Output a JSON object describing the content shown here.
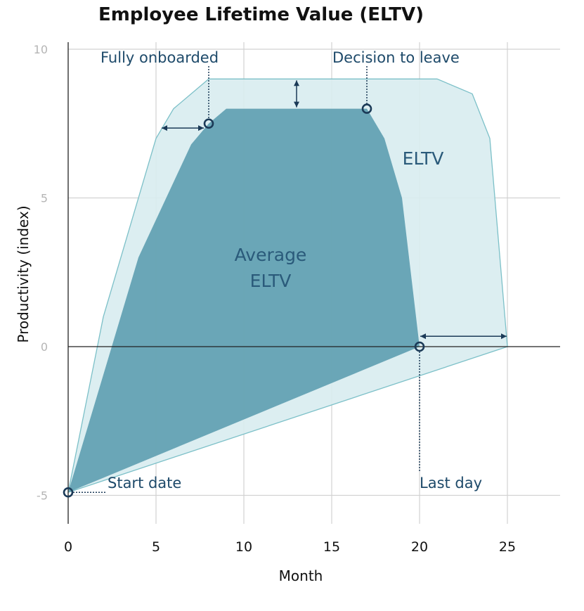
{
  "chart_data": {
    "type": "area",
    "title": "Employee Lifetime Value (ELTV)",
    "xlabel": "Month",
    "ylabel": "Productivity (index)",
    "xlim": [
      0,
      28
    ],
    "ylim": [
      -6,
      10.2
    ],
    "xticks": [
      0,
      5,
      10,
      15,
      20,
      25
    ],
    "yticks": [
      -5,
      0,
      5,
      10
    ],
    "grid": true,
    "colors": {
      "eltv_fill": "#d8ecef",
      "eltv_stroke": "#7cc0c8",
      "avg_fill": "#5a9cae",
      "marker": "#1b3a57",
      "annotation": "#1e4a6a"
    },
    "series": [
      {
        "name": "ELTV",
        "x": [
          0,
          2,
          5,
          6,
          8,
          17,
          21,
          23,
          24,
          25
        ],
        "y": [
          -4.9,
          1,
          7,
          8,
          9,
          9,
          9,
          8.5,
          7,
          0
        ]
      },
      {
        "name": "Average ELTV",
        "x": [
          0,
          4,
          7,
          8,
          9,
          17,
          18,
          19,
          20
        ],
        "y": [
          -4.9,
          3,
          6.8,
          7.5,
          8,
          8,
          7,
          5,
          0
        ]
      }
    ],
    "annotations": [
      {
        "text": "Start date",
        "x": 0,
        "y": -4.9
      },
      {
        "text": "Fully onboarded",
        "x": 8,
        "y": 7.5
      },
      {
        "text": "Decision to leave",
        "x": 17,
        "y": 8
      },
      {
        "text": "Last day",
        "x": 20,
        "y": 0
      }
    ],
    "area_labels": {
      "eltv": "ELTV",
      "average_line1": "Average",
      "average_line2": "ELTV"
    }
  }
}
